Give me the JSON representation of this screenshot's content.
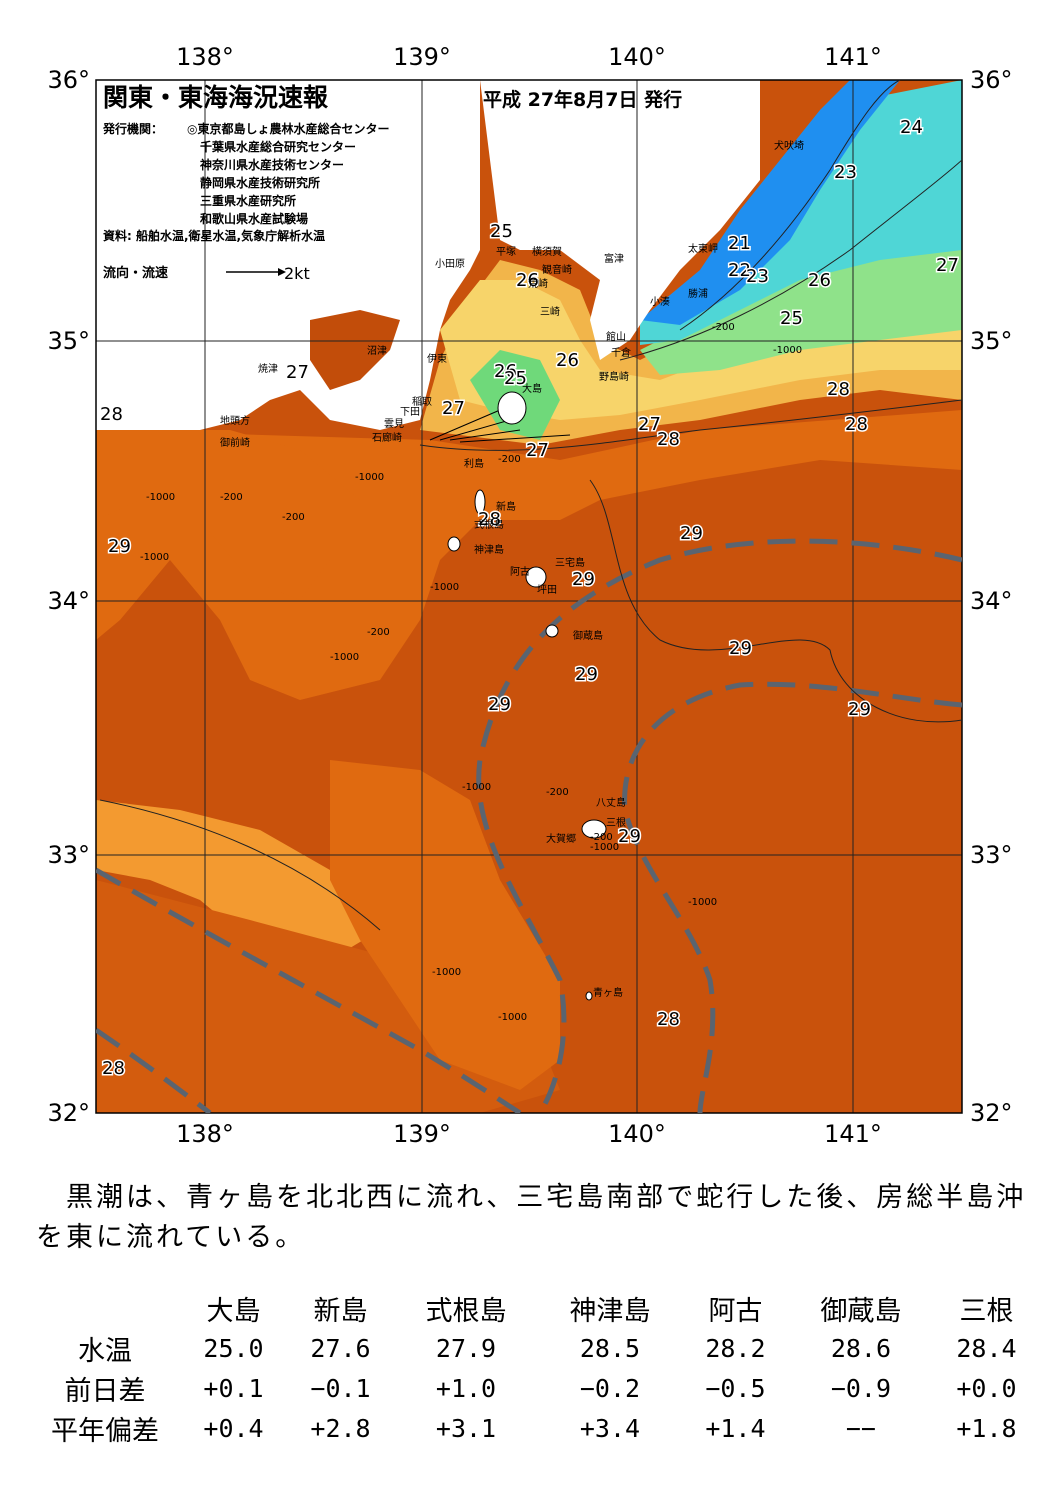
{
  "report": {
    "title": "関東・東海海況速報",
    "date": "平成 27年8月7日 発行",
    "publisher_label": "発行機関：",
    "publishers": [
      "◎東京都島しょ農林水産総合センター",
      "千葉県水産総合研究センター",
      "神奈川県水産技術センター",
      "静岡県水産技術研究所",
      "三重県水産研究所",
      "和歌山県水産試験場"
    ],
    "source": "資料: 船舶水温,衛星水温,気象庁解析水温",
    "current_legend_label": "流向・流速",
    "current_legend_value": "2kt"
  },
  "map": {
    "lon_labels": [
      "138°",
      "139°",
      "140°",
      "141°"
    ],
    "lat_labels": [
      "36°",
      "35°",
      "34°",
      "33°",
      "32°"
    ],
    "temperature_labels": [
      "24",
      "23",
      "21",
      "22",
      "23",
      "26",
      "27",
      "25",
      "25",
      "26",
      "26",
      "26",
      "25",
      "27",
      "28",
      "27",
      "27",
      "27",
      "28",
      "28",
      "28",
      "29",
      "29",
      "29",
      "29",
      "29",
      "29",
      "29",
      "29",
      "28",
      "28",
      "28"
    ],
    "depth_labels": [
      "-200",
      "-1000",
      "-200",
      "-1000",
      "-200",
      "-1000",
      "-200",
      "-1000",
      "-200",
      "-1000",
      "-1000",
      "-1000",
      "-1000",
      "-1000",
      "-200",
      "-1000",
      "-200",
      "-1000"
    ],
    "place_names": [
      "犬吠埼",
      "太東岬",
      "勝浦",
      "小湊",
      "館山",
      "千倉",
      "野島崎",
      "富津",
      "観音崎",
      "横須賀",
      "荒崎",
      "三崎",
      "平塚",
      "小田原",
      "伊東",
      "沼津",
      "焼津",
      "稲取",
      "下田",
      "雲見",
      "石廊崎",
      "地頭方",
      "御前崎",
      "大島",
      "利島",
      "新島",
      "式根島",
      "神津島",
      "三宅島",
      "阿古",
      "坪田",
      "御蔵島",
      "八丈島",
      "三根",
      "大賀郷",
      "青ヶ島"
    ],
    "colors": {
      "kuroshio_axis": "#5a6470",
      "very_warm": "#c24d0a",
      "warm": "#e06a10",
      "mild": "#f39a30",
      "yellow": "#f7d46a",
      "green": "#6fd97a",
      "cyan": "#4fd6d6",
      "blue": "#1f8ff0"
    }
  },
  "summary_text": "　黒潮は、青ヶ島を北北西に流れ、三宅島南部で蛇行した後、房総半島沖を東に流れている。",
  "stats": {
    "columns": [
      "大島",
      "新島",
      "式根島",
      "神津島",
      "阿古",
      "御蔵島",
      "三根"
    ],
    "rows": [
      {
        "label": "水温",
        "values": [
          "25.0",
          "27.6",
          "27.9",
          "28.5",
          "28.2",
          "28.6",
          "28.4"
        ]
      },
      {
        "label": "前日差",
        "values": [
          "+0.1",
          "−0.1",
          "+1.0",
          "−0.2",
          "−0.5",
          "−0.9",
          "+0.0"
        ]
      },
      {
        "label": "平年偏差",
        "values": [
          "+0.4",
          "+2.8",
          "+3.1",
          "+3.4",
          "+1.4",
          "−−",
          "+1.8"
        ]
      }
    ]
  }
}
